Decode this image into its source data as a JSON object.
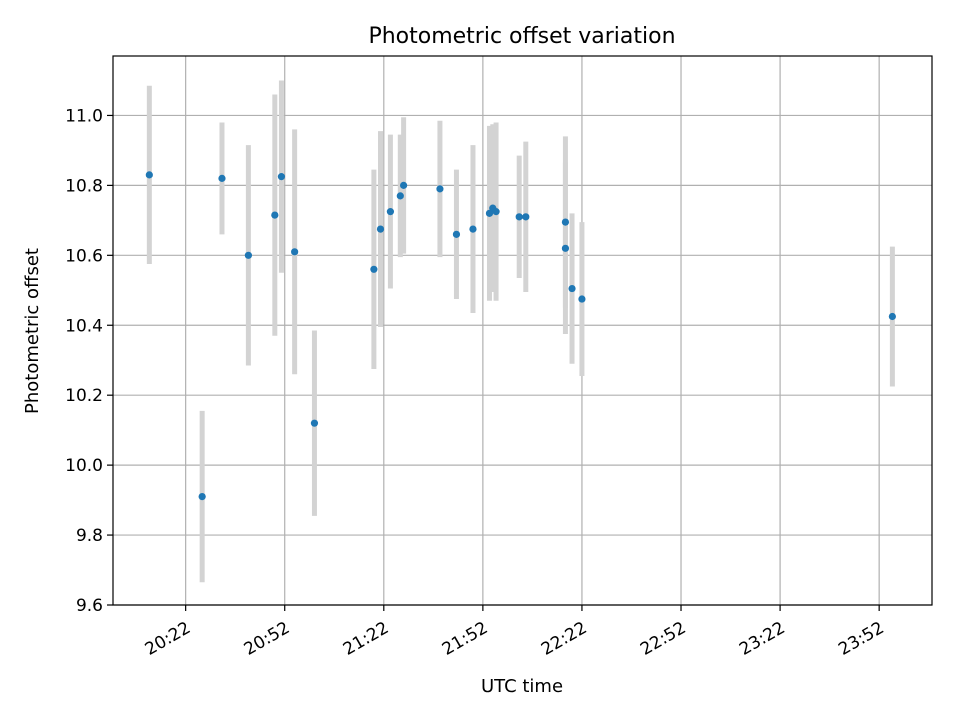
{
  "chart_data": {
    "type": "scatter",
    "title": "Photometric offset variation",
    "xlabel": "UTC time",
    "ylabel": "Photometric offset",
    "x_tick_labels": [
      "20:22",
      "20:52",
      "21:22",
      "21:52",
      "22:22",
      "22:52",
      "23:22",
      "23:52"
    ],
    "x_tick_values": [
      "20:22",
      "20:52",
      "21:22",
      "21:52",
      "22:22",
      "22:52",
      "23:22",
      "23:52"
    ],
    "xlim": [
      "20:00",
      "24:08"
    ],
    "ylim": [
      9.6,
      11.17
    ],
    "y_ticks": [
      9.6,
      9.8,
      10.0,
      10.2,
      10.4,
      10.6,
      10.8,
      11.0
    ],
    "grid": true,
    "marker_color": "#1f77b4",
    "errorbar_color": "#d3d3d3",
    "points": [
      {
        "x": "20:11",
        "y": 10.83,
        "yerr": 0.255
      },
      {
        "x": "20:27",
        "y": 9.91,
        "yerr": 0.245
      },
      {
        "x": "20:33",
        "y": 10.82,
        "yerr": 0.16
      },
      {
        "x": "20:41",
        "y": 10.6,
        "yerr": 0.315
      },
      {
        "x": "20:49",
        "y": 10.715,
        "yerr": 0.345
      },
      {
        "x": "20:51",
        "y": 10.825,
        "yerr": 0.275
      },
      {
        "x": "20:55",
        "y": 10.61,
        "yerr": 0.35
      },
      {
        "x": "21:01",
        "y": 10.12,
        "yerr": 0.265
      },
      {
        "x": "21:19",
        "y": 10.56,
        "yerr": 0.285
      },
      {
        "x": "21:21",
        "y": 10.675,
        "yerr": 0.28
      },
      {
        "x": "21:24",
        "y": 10.725,
        "yerr": 0.22
      },
      {
        "x": "21:27",
        "y": 10.77,
        "yerr": 0.175
      },
      {
        "x": "21:28",
        "y": 10.8,
        "yerr": 0.195
      },
      {
        "x": "21:39",
        "y": 10.79,
        "yerr": 0.195
      },
      {
        "x": "21:44",
        "y": 10.66,
        "yerr": 0.185
      },
      {
        "x": "21:49",
        "y": 10.675,
        "yerr": 0.24
      },
      {
        "x": "21:54",
        "y": 10.72,
        "yerr": 0.25
      },
      {
        "x": "21:55",
        "y": 10.735,
        "yerr": 0.24
      },
      {
        "x": "21:56",
        "y": 10.725,
        "yerr": 0.255
      },
      {
        "x": "22:03",
        "y": 10.71,
        "yerr": 0.175
      },
      {
        "x": "22:05",
        "y": 10.71,
        "yerr": 0.215
      },
      {
        "x": "22:17",
        "y": 10.695,
        "yerr": 0.245
      },
      {
        "x": "22:17",
        "y": 10.62,
        "yerr": 0.245
      },
      {
        "x": "22:19",
        "y": 10.505,
        "yerr": 0.215
      },
      {
        "x": "22:22",
        "y": 10.475,
        "yerr": 0.22
      },
      {
        "x": "23:56",
        "y": 10.425,
        "yerr": 0.2
      }
    ]
  }
}
